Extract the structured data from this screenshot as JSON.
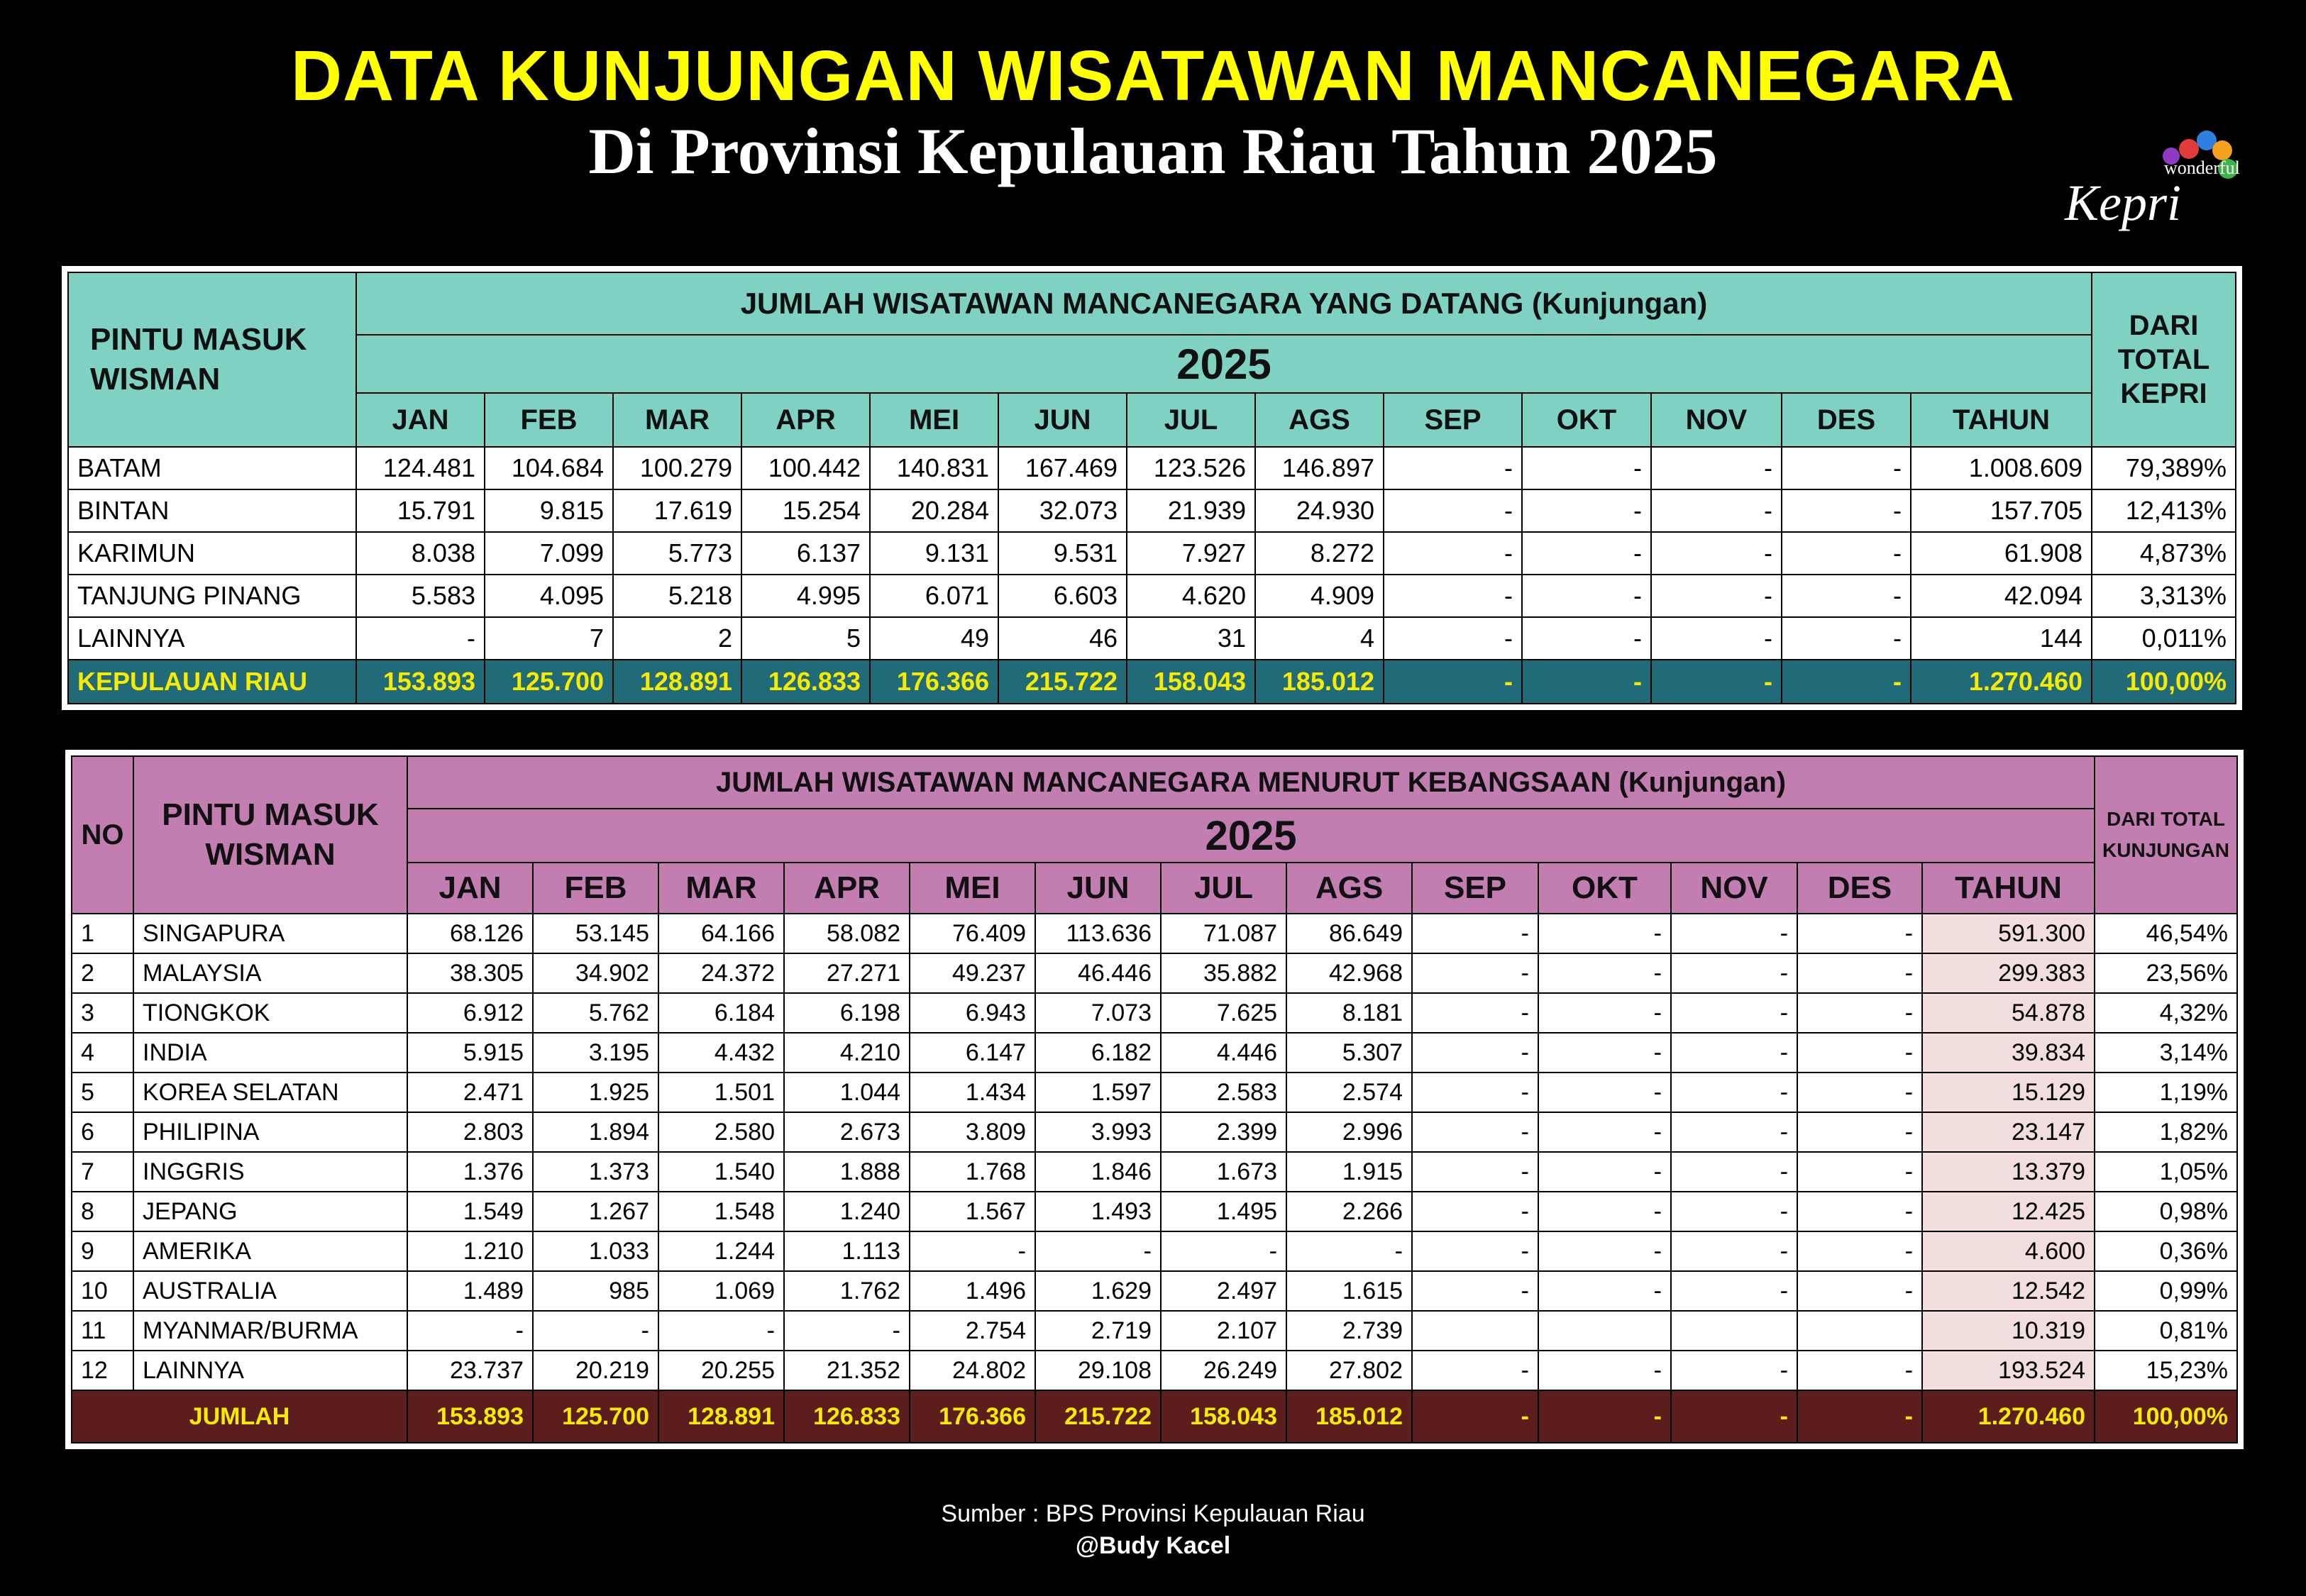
{
  "header": {
    "title": "DATA KUNJUNGAN WISATAWAN MANCANEGARA",
    "subtitle": "Di Provinsi Kepulauan Riau Tahun 2025",
    "logo_small": "wonderful",
    "logo_main": "Kepri"
  },
  "table1": {
    "label": "PINTU MASUK WISMAN",
    "title": "JUMLAH WISATAWAN MANCANEGARA YANG DATANG (Kunjungan)",
    "year": "2025",
    "share_label": "DARI TOTAL KEPRI",
    "columns": [
      "JAN",
      "FEB",
      "MAR",
      "APR",
      "MEI",
      "JUN",
      "JUL",
      "AGS",
      "SEP",
      "OKT",
      "NOV",
      "DES",
      "TAHUN"
    ],
    "rows": [
      [
        "BATAM",
        "124.481",
        "104.684",
        "100.279",
        "100.442",
        "140.831",
        "167.469",
        "123.526",
        "146.897",
        "-",
        "-",
        "-",
        "-",
        "1.008.609",
        "79,389%"
      ],
      [
        "BINTAN",
        "15.791",
        "9.815",
        "17.619",
        "15.254",
        "20.284",
        "32.073",
        "21.939",
        "24.930",
        "-",
        "-",
        "-",
        "-",
        "157.705",
        "12,413%"
      ],
      [
        "KARIMUN",
        "8.038",
        "7.099",
        "5.773",
        "6.137",
        "9.131",
        "9.531",
        "7.927",
        "8.272",
        "-",
        "-",
        "-",
        "-",
        "61.908",
        "4,873%"
      ],
      [
        "TANJUNG PINANG",
        "5.583",
        "4.095",
        "5.218",
        "4.995",
        "6.071",
        "6.603",
        "4.620",
        "4.909",
        "-",
        "-",
        "-",
        "-",
        "42.094",
        "3,313%"
      ],
      [
        "LAINNYA",
        "-",
        "7",
        "2",
        "5",
        "49",
        "46",
        "31",
        "4",
        "-",
        "-",
        "-",
        "-",
        "144",
        "0,011%"
      ]
    ],
    "total": [
      "KEPULAUAN RIAU",
      "153.893",
      "125.700",
      "128.891",
      "126.833",
      "176.366",
      "215.722",
      "158.043",
      "185.012",
      "-",
      "-",
      "-",
      "-",
      "1.270.460",
      "100,00%"
    ]
  },
  "table2": {
    "no_label": "NO",
    "label": "PINTU MASUK WISMAN",
    "title": "JUMLAH WISATAWAN MANCANEGARA MENURUT KEBANGSAAN (Kunjungan)",
    "year": "2025",
    "share_label": "DARI TOTAL KUNJUNGAN",
    "columns": [
      "JAN",
      "FEB",
      "MAR",
      "APR",
      "MEI",
      "JUN",
      "JUL",
      "AGS",
      "SEP",
      "OKT",
      "NOV",
      "DES",
      "TAHUN"
    ],
    "rows": [
      [
        "1",
        "SINGAPURA",
        "68.126",
        "53.145",
        "64.166",
        "58.082",
        "76.409",
        "113.636",
        "71.087",
        "86.649",
        "-",
        "-",
        "-",
        "-",
        "591.300",
        "46,54%"
      ],
      [
        "2",
        "MALAYSIA",
        "38.305",
        "34.902",
        "24.372",
        "27.271",
        "49.237",
        "46.446",
        "35.882",
        "42.968",
        "-",
        "-",
        "-",
        "-",
        "299.383",
        "23,56%"
      ],
      [
        "3",
        "TIONGKOK",
        "6.912",
        "5.762",
        "6.184",
        "6.198",
        "6.943",
        "7.073",
        "7.625",
        "8.181",
        "-",
        "-",
        "-",
        "-",
        "54.878",
        "4,32%"
      ],
      [
        "4",
        "INDIA",
        "5.915",
        "3.195",
        "4.432",
        "4.210",
        "6.147",
        "6.182",
        "4.446",
        "5.307",
        "-",
        "-",
        "-",
        "-",
        "39.834",
        "3,14%"
      ],
      [
        "5",
        "KOREA SELATAN",
        "2.471",
        "1.925",
        "1.501",
        "1.044",
        "1.434",
        "1.597",
        "2.583",
        "2.574",
        "-",
        "-",
        "-",
        "-",
        "15.129",
        "1,19%"
      ],
      [
        "6",
        "PHILIPINA",
        "2.803",
        "1.894",
        "2.580",
        "2.673",
        "3.809",
        "3.993",
        "2.399",
        "2.996",
        "-",
        "-",
        "-",
        "-",
        "23.147",
        "1,82%"
      ],
      [
        "7",
        "INGGRIS",
        "1.376",
        "1.373",
        "1.540",
        "1.888",
        "1.768",
        "1.846",
        "1.673",
        "1.915",
        "-",
        "-",
        "-",
        "-",
        "13.379",
        "1,05%"
      ],
      [
        "8",
        "JEPANG",
        "1.549",
        "1.267",
        "1.548",
        "1.240",
        "1.567",
        "1.493",
        "1.495",
        "2.266",
        "-",
        "-",
        "-",
        "-",
        "12.425",
        "0,98%"
      ],
      [
        "9",
        "AMERIKA",
        "1.210",
        "1.033",
        "1.244",
        "1.113",
        "-",
        "-",
        "-",
        "-",
        "-",
        "-",
        "-",
        "-",
        "4.600",
        "0,36%"
      ],
      [
        "10",
        "AUSTRALIA",
        "1.489",
        "985",
        "1.069",
        "1.762",
        "1.496",
        "1.629",
        "2.497",
        "1.615",
        "-",
        "-",
        "-",
        "-",
        "12.542",
        "0,99%"
      ],
      [
        "11",
        "MYANMAR/BURMA",
        "-",
        "-",
        "-",
        "-",
        "2.754",
        "2.719",
        "2.107",
        "2.739",
        null,
        null,
        null,
        null,
        "10.319",
        "0,81%"
      ],
      [
        "12",
        "LAINNYA",
        "23.737",
        "20.219",
        "20.255",
        "21.352",
        "24.802",
        "29.108",
        "26.249",
        "27.802",
        "-",
        "-",
        "-",
        "-",
        "193.524",
        "15,23%"
      ]
    ],
    "total": [
      "JUMLAH",
      "153.893",
      "125.700",
      "128.891",
      "126.833",
      "176.366",
      "215.722",
      "158.043",
      "185.012",
      "-",
      "-",
      "-",
      "-",
      "1.270.460",
      "100,00%"
    ]
  },
  "footer": {
    "source": "Sumber : BPS Provinsi Kepulauan Riau",
    "credit": "@Budy Kacel"
  }
}
